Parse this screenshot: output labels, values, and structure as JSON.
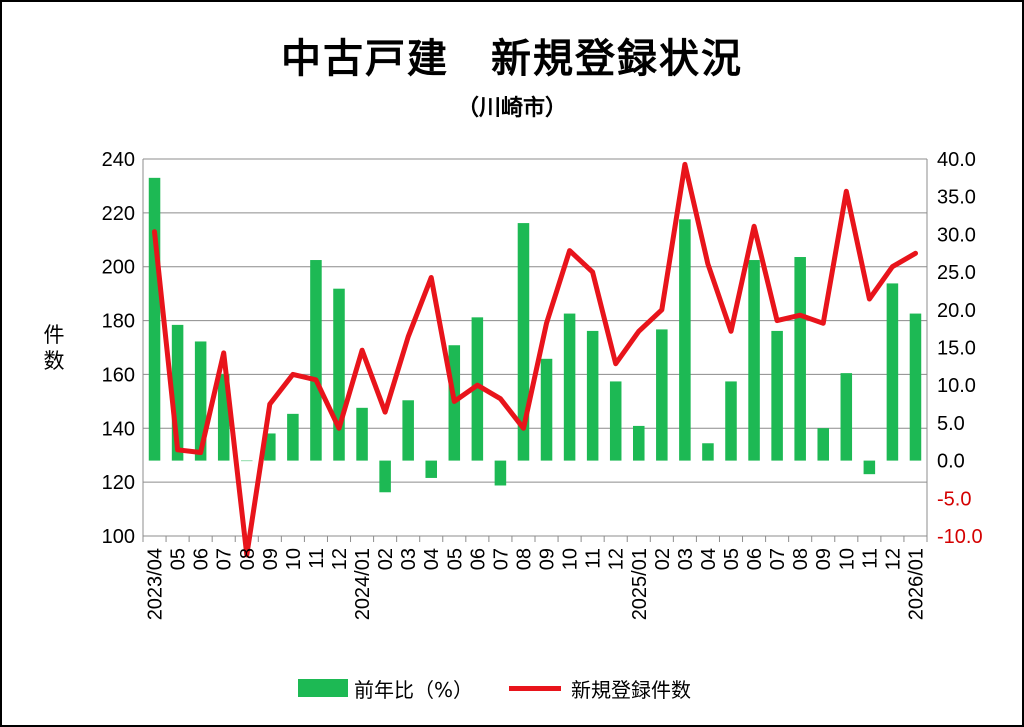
{
  "chart_data": {
    "type": "bar+line",
    "title": "中古戸建　新規登録状況",
    "subtitle": "（川崎市）",
    "ylabel_left": "件数",
    "categories": [
      "2023/04",
      "05",
      "06",
      "07",
      "08",
      "09",
      "10",
      "11",
      "12",
      "2024/01",
      "02",
      "03",
      "04",
      "05",
      "06",
      "07",
      "08",
      "09",
      "10",
      "11",
      "12",
      "2025/01",
      "02",
      "03",
      "04",
      "05",
      "06",
      "07",
      "08",
      "09",
      "10",
      "11",
      "12",
      "2026/01"
    ],
    "series": [
      {
        "name": "前年比（%）",
        "type": "bar",
        "axis": "right",
        "color": "#1db954",
        "values": [
          37.5,
          18.0,
          15.8,
          11.5,
          0.0,
          3.6,
          6.2,
          26.6,
          22.8,
          7.0,
          -4.2,
          8.0,
          -2.3,
          15.3,
          19.0,
          -3.3,
          31.5,
          13.5,
          19.5,
          17.2,
          10.5,
          4.6,
          17.4,
          32.0,
          2.3,
          10.5,
          26.6,
          17.2,
          27.0,
          4.3,
          11.6,
          -1.8,
          23.5,
          19.5
        ]
      },
      {
        "name": "新規登録件数",
        "type": "line",
        "axis": "left",
        "color": "#e8141b",
        "values": [
          213,
          132,
          131,
          168,
          93,
          149,
          160,
          158,
          140,
          169,
          146,
          174,
          196,
          150,
          156,
          151,
          140,
          179,
          206,
          198,
          164,
          176,
          184,
          238,
          201,
          176,
          215,
          180,
          182,
          179,
          228,
          188,
          200,
          205
        ]
      }
    ],
    "yaxis_left": {
      "min": 100,
      "max": 240,
      "step": 20,
      "ticks": [
        "100",
        "120",
        "140",
        "160",
        "180",
        "200",
        "220",
        "240"
      ]
    },
    "yaxis_right": {
      "min": -10,
      "max": 40,
      "step": 5,
      "ticks": [
        "-10.0",
        "-5.0",
        "0.0",
        "5.0",
        "10.0",
        "15.0",
        "20.0",
        "25.0",
        "30.0",
        "35.0",
        "40.0"
      ],
      "negative_color": "#d40000"
    },
    "grid": true,
    "legend": "bottom"
  }
}
